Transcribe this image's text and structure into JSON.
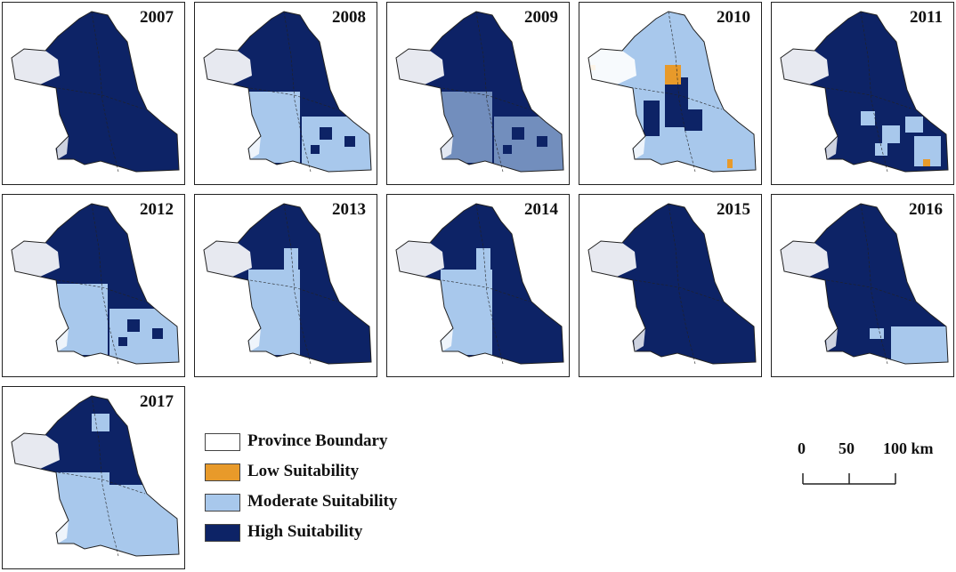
{
  "panels": [
    {
      "year": "2007",
      "state": "high"
    },
    {
      "year": "2008",
      "state": "mod-west-se"
    },
    {
      "year": "2009",
      "state": "mod-west-se2"
    },
    {
      "year": "2010",
      "state": "mostly-mod-low"
    },
    {
      "year": "2011",
      "state": "mod-patches-low"
    },
    {
      "year": "2012",
      "state": "mod-west-se"
    },
    {
      "year": "2013",
      "state": "mod-west"
    },
    {
      "year": "2014",
      "state": "mod-west"
    },
    {
      "year": "2015",
      "state": "high"
    },
    {
      "year": "2016",
      "state": "mod-se"
    },
    {
      "year": "2017",
      "state": "mod-south"
    }
  ],
  "legend": [
    {
      "label": "Province Boundary",
      "color": "#ffffff"
    },
    {
      "label": "Low Suitability",
      "color": "#e89a2a"
    },
    {
      "label": "Moderate Suitability",
      "color": "#a8c8ec"
    },
    {
      "label": "High Suitability",
      "color": "#0d2366"
    }
  ],
  "scale": {
    "ticks": [
      "0",
      "50",
      "100 km"
    ]
  },
  "colors": {
    "high": "#0d2366",
    "moderate": "#a8c8ec",
    "low": "#e89a2a",
    "boundary": "#222222"
  }
}
